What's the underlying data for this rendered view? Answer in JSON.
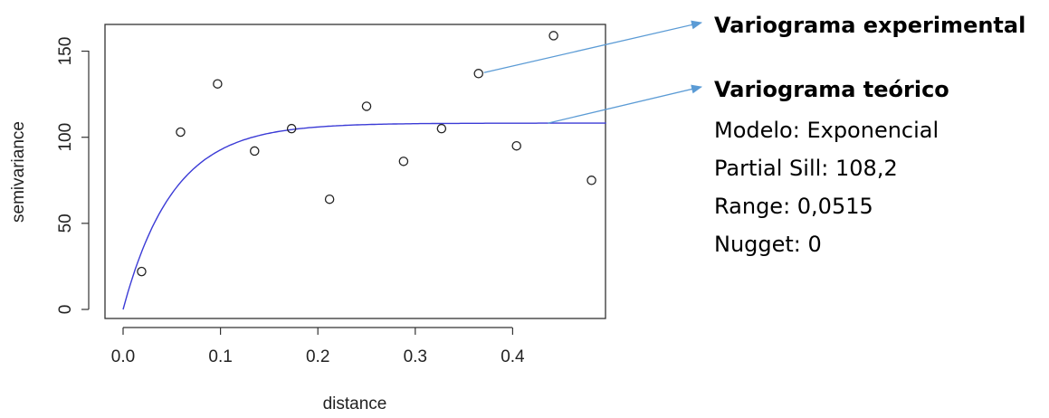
{
  "chart_data": {
    "type": "scatter",
    "xlabel": "distance",
    "ylabel": "semivariance",
    "xlim": [
      0,
      0.5
    ],
    "ylim": [
      0,
      160
    ],
    "x_ticks": [
      "0.0",
      "0.1",
      "0.2",
      "0.3",
      "0.4"
    ],
    "y_ticks": [
      "0",
      "50",
      "100",
      "150"
    ],
    "points": {
      "x": [
        0.019,
        0.059,
        0.097,
        0.135,
        0.173,
        0.212,
        0.25,
        0.288,
        0.327,
        0.365,
        0.404,
        0.442,
        0.481
      ],
      "y": [
        22,
        103,
        131,
        92,
        105,
        64,
        118,
        86,
        105,
        137,
        95,
        159,
        75
      ]
    },
    "model_curve": {
      "model": "exponential",
      "partial_sill": 108.2,
      "range": 0.0515,
      "nugget": 0,
      "color": "#3b3bd6"
    },
    "point_color": "#222222",
    "annotations": {
      "experimental": {
        "title": "Variograma experimental",
        "target": {
          "x": 0.365,
          "y": 137
        }
      },
      "theoretical": {
        "title": "Variograma teórico",
        "lines": [
          "Modelo: Exponencial",
          "Partial Sill: 108,2",
          "Range: 0,0515",
          "Nugget: 0"
        ],
        "target": {
          "x": 0.44,
          "y": 108.2
        }
      },
      "arrow_color": "#5b9bd5"
    }
  }
}
